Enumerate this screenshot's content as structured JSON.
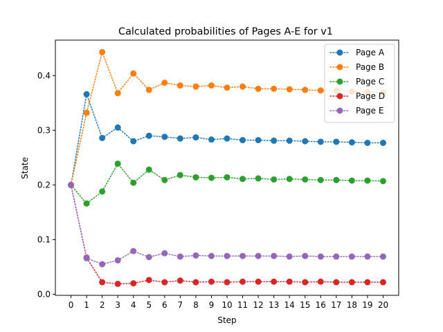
{
  "chart_data": {
    "type": "line",
    "title": "Calculated probabilities of Pages A-E for v1",
    "xlabel": "Step",
    "ylabel": "State",
    "x": [
      0,
      1,
      2,
      3,
      4,
      5,
      6,
      7,
      8,
      9,
      10,
      11,
      12,
      13,
      14,
      15,
      16,
      17,
      18,
      19,
      20
    ],
    "xlim": [
      -1,
      21
    ],
    "ylim": [
      -0.002,
      0.465
    ],
    "xticks": [
      0,
      1,
      2,
      3,
      4,
      5,
      6,
      7,
      8,
      9,
      10,
      11,
      12,
      13,
      14,
      15,
      16,
      17,
      18,
      19,
      20
    ],
    "yticks": [
      0.0,
      0.1,
      0.2,
      0.3,
      0.4
    ],
    "ytick_labels": [
      "0.0",
      "0.1",
      "0.2",
      "0.3",
      "0.4"
    ],
    "grid": false,
    "line_style": "dotted",
    "marker": "circle",
    "legend_position": "top-right",
    "series": [
      {
        "name": "Page A",
        "color": "#1f77b4",
        "values": [
          0.2,
          0.366,
          0.286,
          0.305,
          0.28,
          0.29,
          0.288,
          0.285,
          0.287,
          0.283,
          0.285,
          0.282,
          0.282,
          0.281,
          0.281,
          0.28,
          0.279,
          0.279,
          0.278,
          0.277,
          0.277
        ]
      },
      {
        "name": "Page B",
        "color": "#ff7f0e",
        "values": [
          0.2,
          0.332,
          0.443,
          0.368,
          0.404,
          0.374,
          0.387,
          0.382,
          0.38,
          0.382,
          0.378,
          0.38,
          0.376,
          0.376,
          0.375,
          0.374,
          0.373,
          0.372,
          0.371,
          0.37,
          0.369
        ]
      },
      {
        "name": "Page C",
        "color": "#2ca02c",
        "values": [
          0.2,
          0.166,
          0.188,
          0.239,
          0.204,
          0.228,
          0.209,
          0.218,
          0.214,
          0.213,
          0.214,
          0.211,
          0.212,
          0.21,
          0.211,
          0.21,
          0.209,
          0.209,
          0.208,
          0.208,
          0.207
        ]
      },
      {
        "name": "Page D",
        "color": "#d62728",
        "values": [
          0.2,
          0.067,
          0.022,
          0.019,
          0.02,
          0.026,
          0.022,
          0.025,
          0.022,
          0.023,
          0.022,
          0.023,
          0.023,
          0.023,
          0.023,
          0.022,
          0.023,
          0.022,
          0.022,
          0.022,
          0.022
        ]
      },
      {
        "name": "Page E",
        "color": "#9467bd",
        "values": [
          0.2,
          0.066,
          0.055,
          0.062,
          0.079,
          0.068,
          0.075,
          0.069,
          0.071,
          0.07,
          0.07,
          0.07,
          0.07,
          0.07,
          0.069,
          0.07,
          0.069,
          0.069,
          0.069,
          0.069,
          0.069
        ]
      }
    ]
  }
}
